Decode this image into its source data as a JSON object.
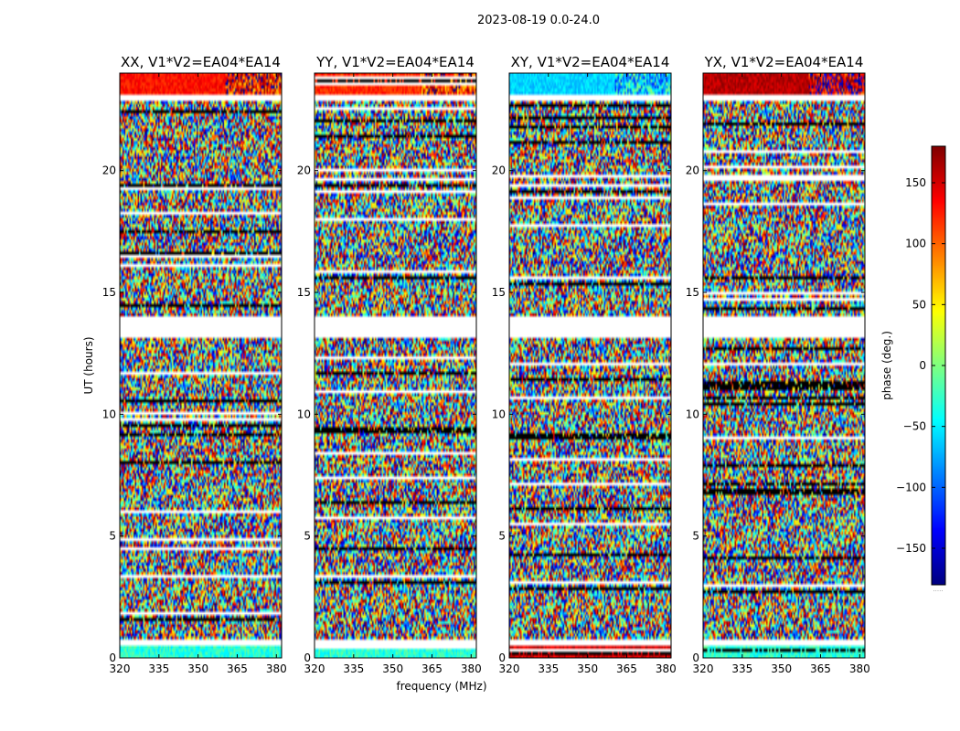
{
  "figure_title": "2023-08-19 0.0-24.0",
  "colorbar_note": ".....",
  "chart_data": {
    "type": "heatmap",
    "title": "2023-08-19 0.0-24.0",
    "xlabel": "frequency (MHz)",
    "ylabel": "UT (hours)",
    "colorbar_label": "phase (deg.)",
    "colormap": "jet",
    "xlim": [
      320,
      382
    ],
    "ylim": [
      0,
      24
    ],
    "clim": [
      -180,
      180
    ],
    "x_ticks": [
      "320",
      "335",
      "350",
      "365",
      "380"
    ],
    "y_ticks": [
      "0",
      "5",
      "10",
      "15",
      "20"
    ],
    "colorbar_ticks": [
      "150",
      "100",
      "50",
      "0",
      "−50",
      "−100",
      "−150"
    ],
    "colorbar_tick_values": [
      150,
      100,
      50,
      0,
      -50,
      -100,
      -150
    ],
    "y_tick_values": [
      0,
      5,
      10,
      15,
      20
    ],
    "x_tick_values": [
      320,
      335,
      350,
      365,
      380
    ],
    "gaps_hours": [
      [
        0.5,
        0.7
      ],
      [
        13.1,
        14.0
      ],
      [
        22.9,
        23.1
      ]
    ],
    "panels": [
      {
        "title": "XX, V1*V2=EA04*EA14",
        "pol": "XX",
        "coherent_phase": 130
      },
      {
        "title": "YY, V1*V2=EA04*EA14",
        "pol": "YY",
        "coherent_phase": 120
      },
      {
        "title": "XY, V1*V2=EA04*EA14",
        "pol": "XY",
        "coherent_phase": -60
      },
      {
        "title": "YX, V1*V2=EA04*EA14",
        "pol": "YX",
        "coherent_phase": 160
      }
    ]
  }
}
